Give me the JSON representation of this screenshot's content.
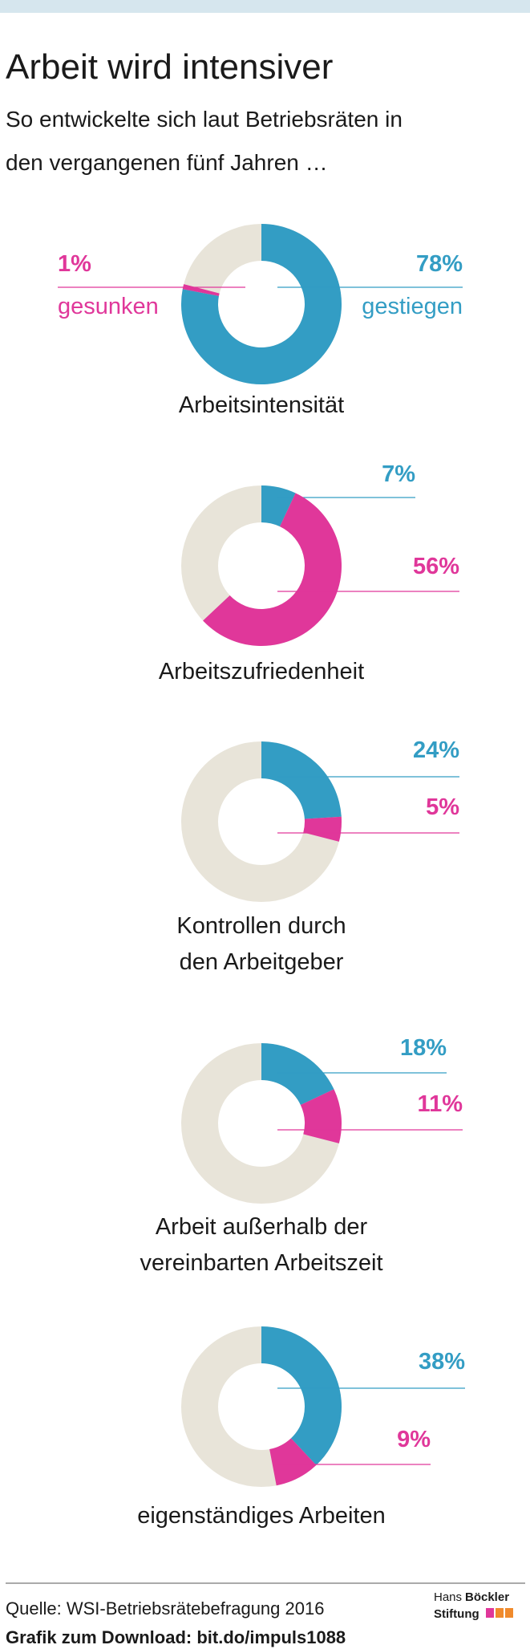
{
  "header": {
    "title": "Arbeit wird intensiver",
    "subtitle": [
      "So entwickelte sich laut Betriebsräten in",
      "den vergangenen fünf Jahren …"
    ]
  },
  "chart_data": [
    {
      "type": "donut",
      "label": [
        "Arbeitsintensität"
      ],
      "series": [
        {
          "name": "gestiegen",
          "color": "#339dc4",
          "values": [
            78
          ],
          "value_labels": [
            "78%"
          ]
        },
        {
          "name": "gesunken",
          "color": "#e0379a",
          "values": [
            1
          ],
          "value_labels": [
            "1%"
          ]
        }
      ]
    },
    {
      "type": "donut",
      "label": [
        "Arbeitszufriedenheit"
      ],
      "series": [
        {
          "color": "#339dc4",
          "values": [
            7
          ],
          "value_labels": [
            "7%"
          ]
        },
        {
          "color": "#e0379a",
          "values": [
            56
          ],
          "value_labels": [
            "56%"
          ]
        }
      ]
    },
    {
      "type": "donut",
      "label": [
        "Kontrollen durch",
        "den Arbeitgeber"
      ],
      "series": [
        {
          "color": "#339dc4",
          "values": [
            24
          ],
          "value_labels": [
            "24%"
          ]
        },
        {
          "color": "#e0379a",
          "values": [
            5
          ],
          "value_labels": [
            "5%"
          ]
        }
      ]
    },
    {
      "type": "donut",
      "label": [
        "Arbeit außerhalb der",
        "vereinbarten Arbeitszeit"
      ],
      "series": [
        {
          "color": "#339dc4",
          "values": [
            18
          ],
          "value_labels": [
            "18%"
          ]
        },
        {
          "color": "#e0379a",
          "values": [
            11
          ],
          "value_labels": [
            "11%"
          ]
        }
      ]
    },
    {
      "type": "donut",
      "label": [
        "eigenständiges Arbeiten"
      ],
      "series": [
        {
          "color": "#339dc4",
          "values": [
            38
          ],
          "value_labels": [
            "38%"
          ]
        },
        {
          "color": "#e0379a",
          "values": [
            9
          ],
          "value_labels": [
            "9%"
          ]
        }
      ]
    }
  ],
  "footer": {
    "source": "Quelle: WSI-Betriebsrätebefragung 2016",
    "download": "Grafik zum Download: bit.do/impuls1088",
    "logo": [
      "Hans",
      "Böckler",
      "Stiftung"
    ]
  }
}
